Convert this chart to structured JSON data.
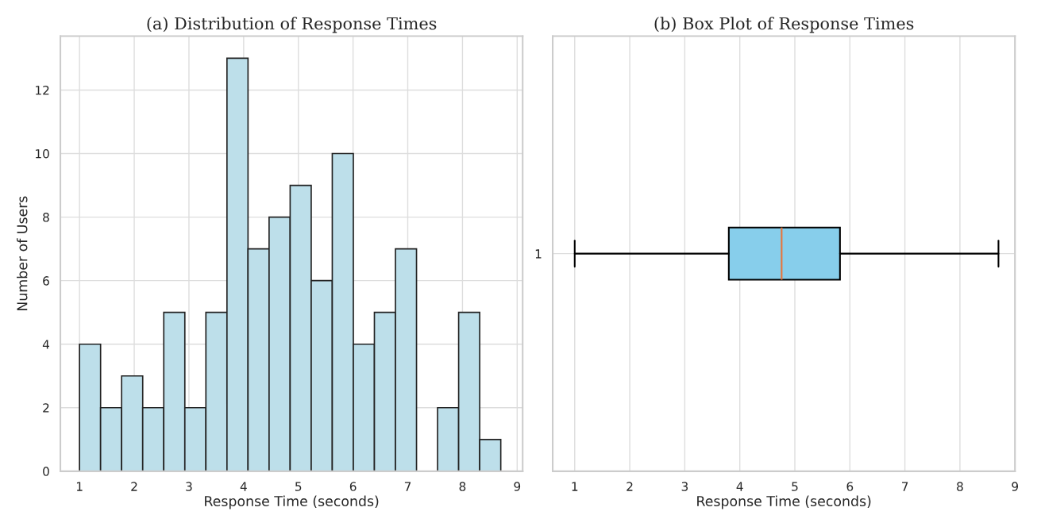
{
  "chart_data": [
    {
      "type": "histogram",
      "title": "(a) Distribution of Response Times",
      "xlabel": "Response Time (seconds)",
      "ylabel": "Number of Users",
      "color": "#bddfea",
      "bins": [
        1.0,
        1.385,
        1.77,
        2.155,
        2.54,
        2.925,
        3.31,
        3.695,
        4.08,
        4.465,
        4.85,
        5.235,
        5.62,
        6.005,
        6.39,
        6.775,
        7.16,
        7.545,
        7.93,
        8.315,
        8.7
      ],
      "values": [
        4,
        2,
        3,
        2,
        5,
        2,
        5,
        13,
        7,
        8,
        9,
        6,
        10,
        4,
        5,
        7,
        0,
        2,
        5,
        1
      ],
      "xlim": [
        0.65,
        9.1
      ],
      "xticks": [
        1,
        2,
        3,
        4,
        5,
        6,
        7,
        8,
        9
      ],
      "ylim": [
        0,
        13.7
      ],
      "yticks": [
        0,
        2,
        4,
        6,
        8,
        10,
        12
      ],
      "grid": true
    },
    {
      "type": "box",
      "title": "(b) Box Plot of Response Times",
      "xlabel": "Response Time (seconds)",
      "orientation": "horizontal",
      "categories": [
        "1"
      ],
      "color": "#87ceeb",
      "boxes": [
        {
          "low": 1.0,
          "q1": 3.8,
          "median": 4.76,
          "q3": 5.82,
          "high": 8.7
        }
      ],
      "xlim": [
        0.6,
        9.0
      ],
      "xticks": [
        1,
        2,
        3,
        4,
        5,
        6,
        7,
        8,
        9
      ],
      "grid": true
    }
  ]
}
